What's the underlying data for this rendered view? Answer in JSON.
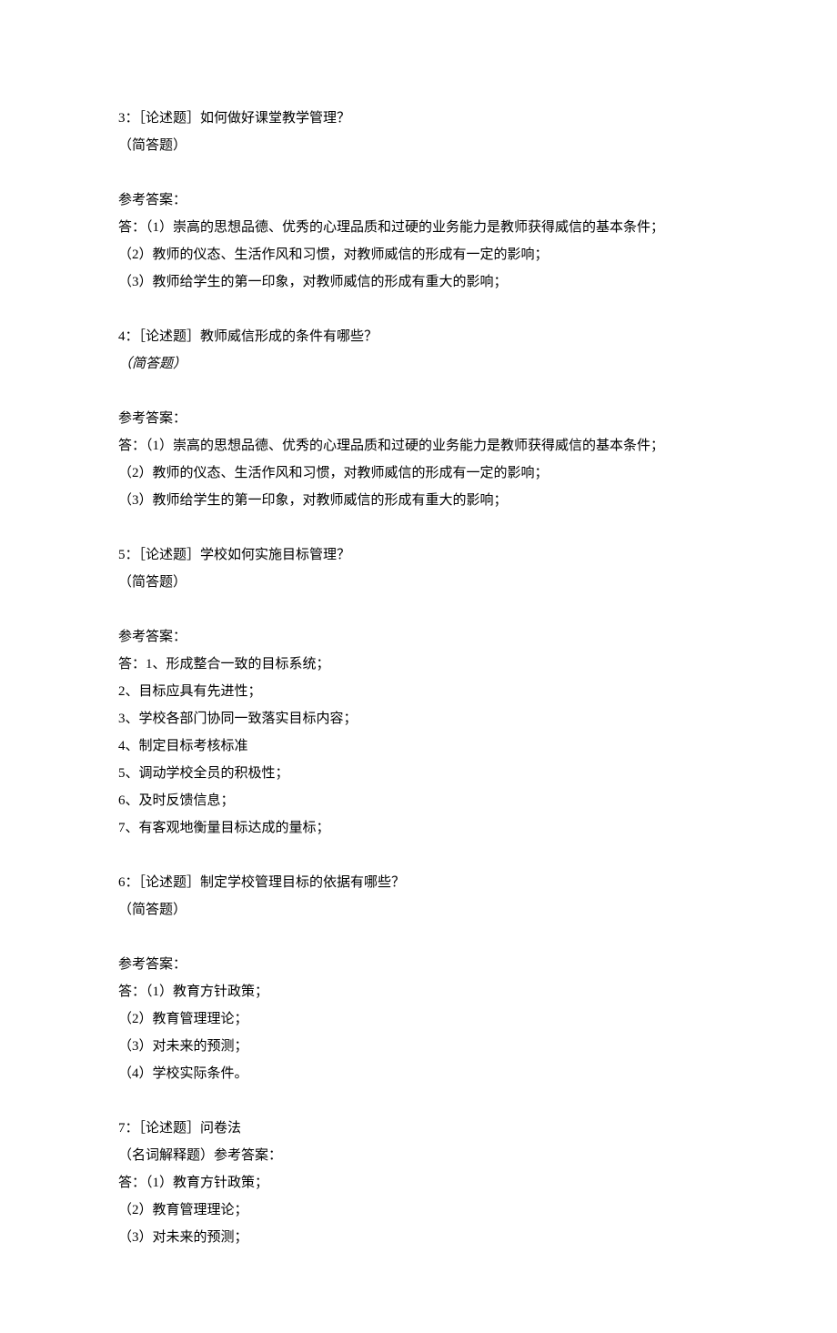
{
  "questions": [
    {
      "header": "3：［论述题］如何做好课堂教学管理？",
      "type": "（简答题）",
      "type_italic": false,
      "ans_label": "参考答案：",
      "answers": [
        "答：（1）崇高的思想品德、优秀的心理品质和过硬的业务能力是教师获得威信的基本条件；",
        "（2）教师的仪态、生活作风和习惯，对教师威信的形成有一定的影响；",
        "（3）教师给学生的第一印象，对教师威信的形成有重大的影响；"
      ]
    },
    {
      "header": "4：［论述题］教师威信形成的条件有哪些？",
      "type": "（简答题）",
      "type_italic": true,
      "ans_label": "参考答案：",
      "answers": [
        "答：（1）崇高的思想品德、优秀的心理品质和过硬的业务能力是教师获得威信的基本条件；",
        "（2）教师的仪态、生活作风和习惯，对教师威信的形成有一定的影响；",
        "（3）教师给学生的第一印象，对教师威信的形成有重大的影响；"
      ]
    },
    {
      "header": "5：［论述题］学校如何实施目标管理？",
      "type": "（简答题）",
      "type_italic": false,
      "ans_label": "参考答案：",
      "answers": [
        "答：1、形成整合一致的目标系统；",
        "2、目标应具有先进性；",
        "3、学校各部门协同一致落实目标内容；",
        "4、制定目标考核标准",
        "5、调动学校全员的积极性；",
        "6、及时反馈信息；",
        "7、有客观地衡量目标达成的量标；"
      ]
    },
    {
      "header": "6：［论述题］制定学校管理目标的依据有哪些？",
      "type": "（简答题）",
      "type_italic": false,
      "ans_label": "参考答案：",
      "answers": [
        "答：（1）教育方针政策；",
        "（2）教育管理理论；",
        "（3）对未来的预测；",
        "（4）学校实际条件。"
      ]
    },
    {
      "header": "7：［论述题］问卷法",
      "type": "（名词解释题）参考答案：",
      "type_italic": false,
      "no_spacer": true,
      "answers": [
        "答：（1）教育方针政策；",
        "（2）教育管理理论；",
        "（3）对未来的预测；"
      ]
    }
  ]
}
